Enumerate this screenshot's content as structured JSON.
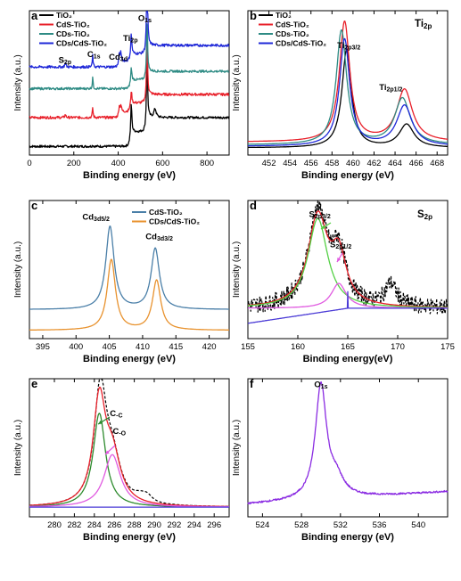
{
  "chart_data": [
    {
      "panel": "a",
      "type": "line",
      "xlabel": "Binding energy (eV)",
      "ylabel": "Intensity (a.u.)",
      "xlim": [
        0,
        900
      ],
      "x_ticks": [
        "0",
        "200",
        "400",
        "600",
        "800"
      ],
      "ylim": [
        0,
        1
      ],
      "series": [
        {
          "name": "TiO₂",
          "color": "#000000",
          "baseline": 0.06,
          "noise": 0.008,
          "steps": [
            [
              455,
              0.1
            ],
            [
              530,
              0.1
            ]
          ],
          "peaks": [
            [
              459,
              0.22,
              3
            ],
            [
              530,
              0.5,
              3
            ],
            [
              566,
              0.06,
              6
            ],
            [
              285,
              0.01,
              2
            ]
          ]
        },
        {
          "name": "CdS-TiO₂",
          "color": "#e8202a",
          "baseline": 0.26,
          "noise": 0.009,
          "steps": [
            [
              405,
              0.04
            ],
            [
              455,
              0.06
            ],
            [
              530,
              0.06
            ]
          ],
          "peaks": [
            [
              285,
              0.07,
              2
            ],
            [
              405,
              0.06,
              3
            ],
            [
              412,
              0.05,
              3
            ],
            [
              459,
              0.1,
              3
            ],
            [
              530,
              0.42,
              3
            ],
            [
              162,
              0.02,
              3
            ]
          ]
        },
        {
          "name": "CDs-TiO₂",
          "color": "#2e8b84",
          "baseline": 0.46,
          "noise": 0.008,
          "steps": [
            [
              455,
              0.06
            ],
            [
              530,
              0.06
            ]
          ],
          "peaks": [
            [
              285,
              0.08,
              2
            ],
            [
              459,
              0.1,
              3
            ],
            [
              530,
              0.38,
              3
            ]
          ]
        },
        {
          "name": "CDs/CdS-TiO₂",
          "color": "#1f28d8",
          "baseline": 0.61,
          "noise": 0.009,
          "steps": [
            [
              405,
              0.04
            ],
            [
              455,
              0.05
            ],
            [
              530,
              0.06
            ]
          ],
          "peaks": [
            [
              162,
              0.03,
              3
            ],
            [
              285,
              0.08,
              2
            ],
            [
              405,
              0.07,
              3
            ],
            [
              412,
              0.06,
              3
            ],
            [
              459,
              0.15,
              3
            ],
            [
              530,
              0.55,
              3
            ]
          ]
        }
      ],
      "annotations": [
        {
          "text": "O1s",
          "x": 520,
          "y": 0.93
        },
        {
          "text": "Ti2p",
          "x": 455,
          "y": 0.79
        },
        {
          "text": "C1s",
          "x": 290,
          "y": 0.68
        },
        {
          "text": "Cd3d",
          "x": 400,
          "y": 0.66
        },
        {
          "text": "S2p",
          "x": 160,
          "y": 0.64
        }
      ],
      "legend_position": "top-left",
      "label": "a"
    },
    {
      "panel": "b",
      "type": "line",
      "title": "Ti2p",
      "xlabel": "Binding energy (eV)",
      "ylabel": "Intensity (a.u.)",
      "xlim": [
        450,
        469
      ],
      "x_ticks": [
        "452",
        "454",
        "456",
        "458",
        "460",
        "462",
        "464",
        "466",
        "468"
      ],
      "ylim": [
        0,
        1
      ],
      "series": [
        {
          "name": "TiO₂",
          "color": "#000000",
          "baseline": 0.05,
          "peaks": [
            [
              459.4,
              0.68,
              0.55
            ],
            [
              465.1,
              0.16,
              0.85
            ]
          ]
        },
        {
          "name": "CdS-TiO₂",
          "color": "#e8202a",
          "baseline": 0.09,
          "peaks": [
            [
              459.2,
              0.83,
              0.6
            ],
            [
              464.9,
              0.36,
              0.9
            ]
          ]
        },
        {
          "name": "CDs-TiO₂",
          "color": "#2e8b84",
          "baseline": 0.07,
          "peaks": [
            [
              458.9,
              0.79,
              0.6
            ],
            [
              464.7,
              0.32,
              0.9
            ]
          ]
        },
        {
          "name": "CDs/CdS-TiO₂",
          "color": "#1f28d8",
          "baseline": 0.06,
          "peaks": [
            [
              459.2,
              0.74,
              0.58
            ],
            [
              464.9,
              0.28,
              0.9
            ]
          ]
        }
      ],
      "annotations": [
        {
          "text": "Ti2p3/2",
          "x": 459.6,
          "y": 0.74
        },
        {
          "text": "Ti2p1/2",
          "x": 463.6,
          "y": 0.45
        }
      ],
      "legend_position": "top-left",
      "label": "b"
    },
    {
      "panel": "c",
      "type": "line",
      "xlabel": "Binding energy (eV)",
      "ylabel": "Intensity (a.u.)",
      "xlim": [
        393,
        423
      ],
      "x_ticks": [
        "395",
        "400",
        "405",
        "410",
        "415",
        "420"
      ],
      "ylim": [
        0,
        1
      ],
      "series": [
        {
          "name": "CdS-TiO₂",
          "color": "#4a7fa8",
          "baseline": 0.21,
          "peaks": [
            [
              405.1,
              0.6,
              0.75
            ],
            [
              411.9,
              0.44,
              0.75
            ]
          ]
        },
        {
          "name": "CDs/CdS-TiO₂",
          "color": "#e8922e",
          "baseline": 0.06,
          "peaks": [
            [
              405.3,
              0.51,
              0.75
            ],
            [
              412.1,
              0.36,
              0.75
            ]
          ]
        }
      ],
      "annotations": [
        {
          "text": "Cd3d5/2",
          "x": 403,
          "y": 0.86
        },
        {
          "text": "Cd3d3/2",
          "x": 412.5,
          "y": 0.72
        }
      ],
      "legend_position": "top-right",
      "label": "c"
    },
    {
      "panel": "d",
      "type": "line",
      "title": "S2p",
      "xlabel": "Binding energy(eV)",
      "ylabel": "Intensity (a.u.)",
      "xlim": [
        155,
        175
      ],
      "x_ticks": [
        "155",
        "160",
        "165",
        "170",
        "175"
      ],
      "ylim": [
        0,
        1
      ],
      "series": [
        {
          "role": "raw",
          "color": "#000000",
          "dashed": true,
          "baseline": 0.22,
          "noise": 0.06,
          "peaks": [
            [
              162,
              0.69,
              1.15
            ],
            [
              164.1,
              0.36,
              0.85
            ],
            [
              169.3,
              0.16,
              0.7
            ]
          ]
        },
        {
          "role": "fit",
          "color": "#e8202a",
          "baseline": 0.22,
          "peaks": [
            [
              162,
              0.65,
              1.2
            ],
            [
              164.1,
              0.34,
              0.9
            ]
          ]
        },
        {
          "role": "S2p3/2",
          "color": "#54d045",
          "baseline": 0.22,
          "peaks": [
            [
              162,
              0.65,
              1.2
            ]
          ]
        },
        {
          "role": "S2p1/2",
          "color": "#e05ae0",
          "baseline": 0.22,
          "peaks": [
            [
              164.1,
              0.18,
              0.9
            ]
          ]
        },
        {
          "role": "background",
          "color": "#4a3ad6",
          "baseline": 0.1,
          "background_hump": [
            [
              154,
              0.0
            ],
            [
              165,
              0.12
            ],
            [
              175,
              0.12
            ]
          ]
        }
      ],
      "annotations": [
        {
          "text": "S2p3/2",
          "x": 162.2,
          "y": 0.88
        },
        {
          "text": "S2p1/2",
          "x": 164.3,
          "y": 0.66
        }
      ],
      "label": "d"
    },
    {
      "panel": "e",
      "type": "line",
      "xlabel": "Binding energy (eV)",
      "ylabel": "Intensity (a.u.)",
      "xlim": [
        277.5,
        297.5
      ],
      "x_ticks": [
        "280",
        "282",
        "284",
        "286",
        "288",
        "290",
        "292",
        "294",
        "296"
      ],
      "ylim": [
        0,
        1
      ],
      "series": [
        {
          "role": "raw",
          "color": "#000000",
          "dashed": true,
          "baseline": 0.07,
          "peaks": [
            [
              284.6,
              0.82,
              0.75
            ],
            [
              285.8,
              0.31,
              1.0
            ],
            [
              288.6,
              0.04,
              0.8
            ],
            [
              289.3,
              0.04,
              0.6
            ]
          ]
        },
        {
          "role": "fit",
          "color": "#e8202a",
          "baseline": 0.07,
          "peaks": [
            [
              284.5,
              0.74,
              0.75
            ],
            [
              285.8,
              0.34,
              1.0
            ]
          ]
        },
        {
          "role": "C-C",
          "color": "#2d8a2d",
          "baseline": 0.07,
          "peaks": [
            [
              284.5,
              0.68,
              0.75
            ]
          ]
        },
        {
          "role": "C-O",
          "color": "#e05ae0",
          "baseline": 0.07,
          "peaks": [
            [
              285.8,
              0.38,
              1.0
            ]
          ]
        },
        {
          "role": "background",
          "color": "#4a3ad6",
          "baseline": 0.07
        }
      ],
      "annotations": [
        {
          "text": "C-C",
          "x": 286.2,
          "y": 0.73
        },
        {
          "text": "C-O",
          "x": 286.5,
          "y": 0.6
        }
      ],
      "label": "e"
    },
    {
      "panel": "f",
      "type": "line",
      "xlabel": "Binding energy (eV)",
      "ylabel": "Intensity (a.u.)",
      "xlim": [
        522.5,
        543
      ],
      "x_ticks": [
        "524",
        "528",
        "532",
        "536",
        "540"
      ],
      "ylim": [
        0,
        1
      ],
      "series": [
        {
          "color": "#8a2be2",
          "baseline": 0.09,
          "noise": 0.006,
          "slope": 0.0045,
          "peaks": [
            [
              530.0,
              0.82,
              0.7
            ],
            [
              531.6,
              0.12,
              0.9
            ]
          ]
        }
      ],
      "annotations": [
        {
          "text": "O1s",
          "x": 530,
          "y": 0.94
        }
      ],
      "label": "f"
    }
  ]
}
